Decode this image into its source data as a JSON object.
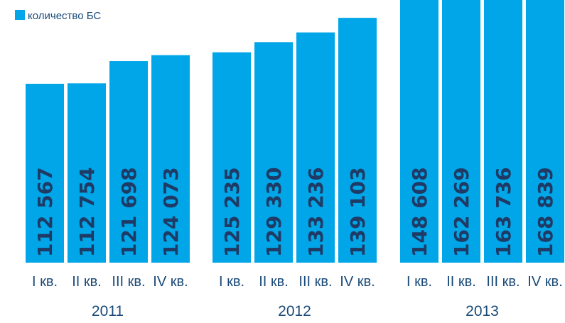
{
  "chart_data": {
    "type": "bar",
    "legend": {
      "label": "количество БС",
      "color": "#00a6e8",
      "placement": "top-left"
    },
    "groups": [
      {
        "year": "2011",
        "categories": [
          "I кв.",
          "II кв.",
          "III кв.",
          "IV кв."
        ],
        "values": [
          112567,
          112754,
          121698,
          124073
        ],
        "value_labels": [
          "112 567",
          "112 754",
          "121 698",
          "124 073"
        ]
      },
      {
        "year": "2012",
        "categories": [
          "I кв.",
          "II кв.",
          "III кв.",
          "IV кв."
        ],
        "values": [
          125235,
          129330,
          133236,
          139103
        ],
        "value_labels": [
          "125 235",
          "129 330",
          "133 236",
          "139 103"
        ]
      },
      {
        "year": "2013",
        "categories": [
          "I кв.",
          "II кв.",
          "III кв.",
          "IV кв."
        ],
        "values": [
          148608,
          162269,
          163736,
          168839
        ],
        "value_labels": [
          "148 608",
          "162 269",
          "163 736",
          "168 839"
        ]
      }
    ],
    "colors": {
      "bar": "#00a6e8",
      "value_text": "#1f3a64",
      "label_text": "#1a4a78"
    },
    "grid": false,
    "axes_visible": false
  }
}
